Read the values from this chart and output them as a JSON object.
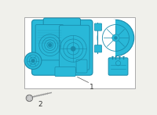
{
  "bg_color": "#f0f0eb",
  "box_color": "#ffffff",
  "box_border": "#aaaaaa",
  "teal_fill": "#29b8d8",
  "teal_edge": "#1a8aaa",
  "teal_dark": "#0d6680",
  "teal_mid": "#20a0c0",
  "gray_bolt": "#999999",
  "gray_bolt_dark": "#666666",
  "label_color": "#333333",
  "label1": "1",
  "label2": "2"
}
